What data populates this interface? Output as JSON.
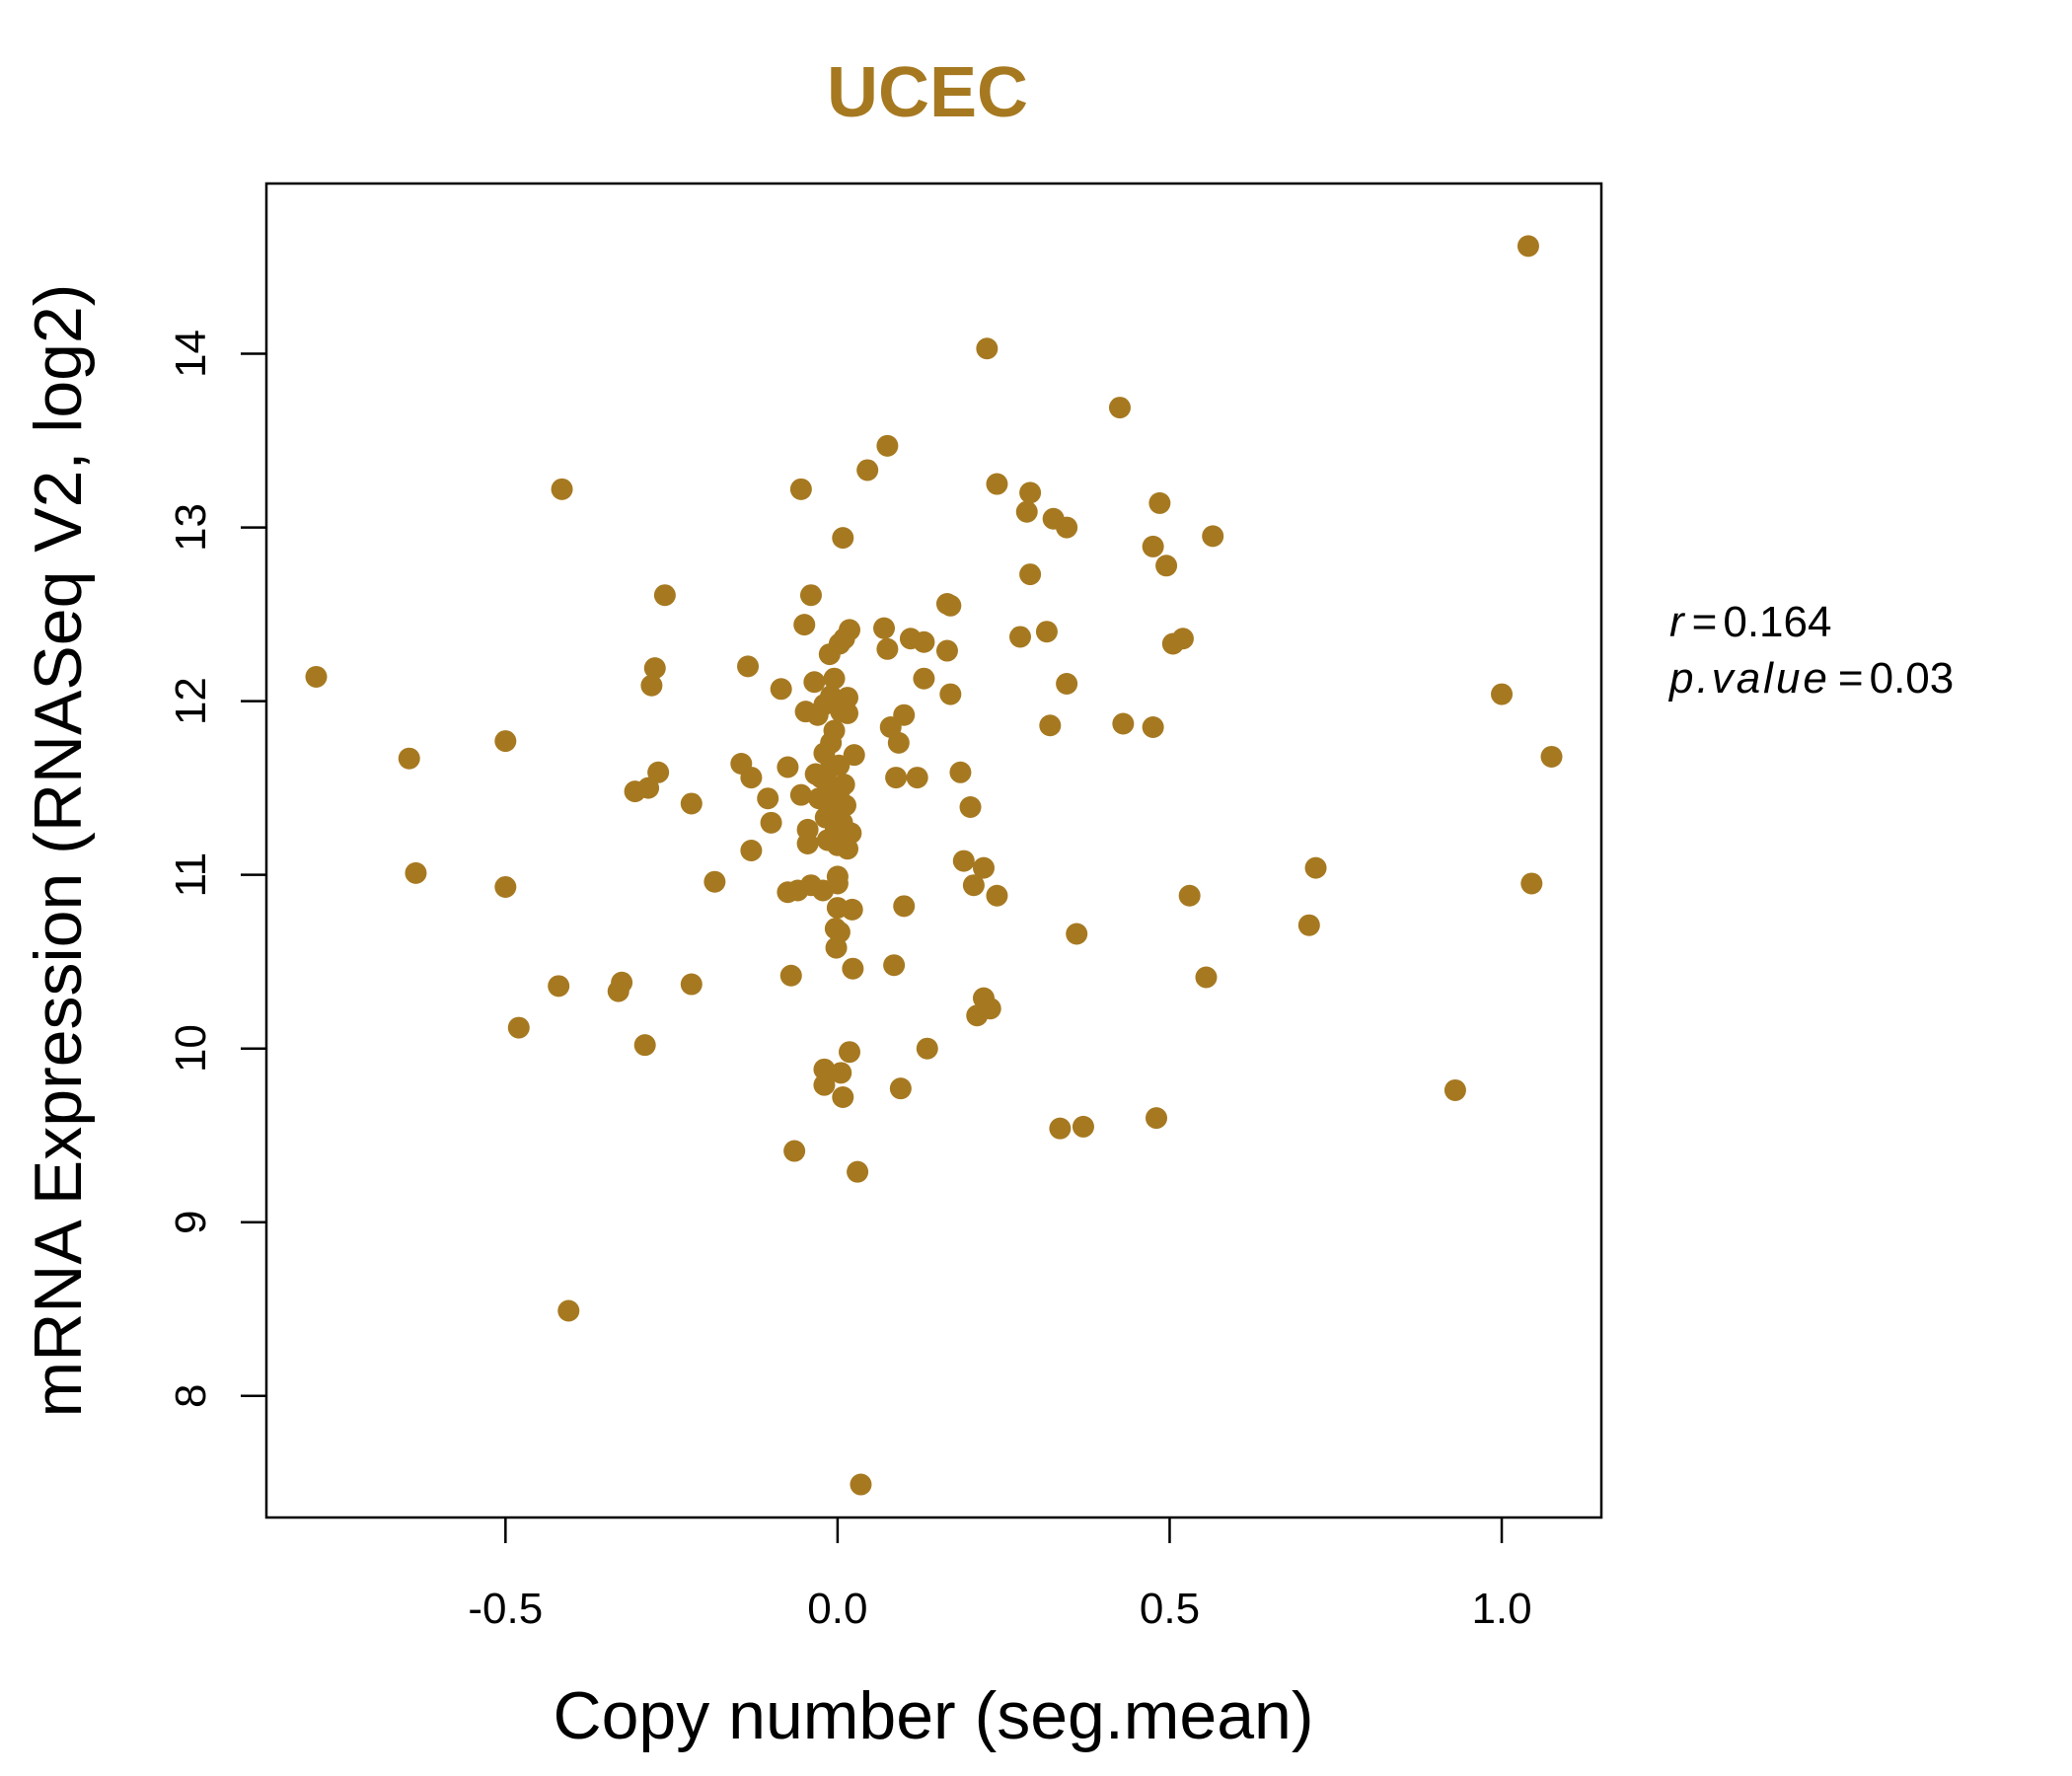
{
  "chart_data": {
    "type": "scatter",
    "title": "UCEC",
    "xlabel": "Copy number (seg.mean)",
    "ylabel": "mRNA Expression (RNASeq V2, log2)",
    "xlim": [
      -0.86,
      1.15
    ],
    "ylim": [
      7.3,
      14.98
    ],
    "xticks": [
      -0.5,
      0.0,
      0.5,
      1.0
    ],
    "xtick_labels": [
      "-0.5",
      "0.0",
      "0.5",
      "1.0"
    ],
    "yticks": [
      8,
      9,
      10,
      11,
      12,
      13,
      14
    ],
    "ytick_labels": [
      "8",
      "9",
      "10",
      "11",
      "12",
      "13",
      "14"
    ],
    "grid": false,
    "point_color": "#A67921",
    "stats": {
      "r_label": "r",
      "r_value": "0.164",
      "p_label": "p.value",
      "p_value": "0.03"
    },
    "points": [
      [
        -0.785,
        12.14
      ],
      [
        -0.645,
        11.67
      ],
      [
        -0.635,
        11.01
      ],
      [
        -0.5,
        11.77
      ],
      [
        -0.5,
        10.93
      ],
      [
        -0.48,
        10.12
      ],
      [
        -0.415,
        13.22
      ],
      [
        -0.42,
        10.36
      ],
      [
        -0.405,
        8.49
      ],
      [
        -0.33,
        10.33
      ],
      [
        -0.325,
        10.38
      ],
      [
        -0.305,
        11.48
      ],
      [
        -0.29,
        10.02
      ],
      [
        -0.285,
        11.5
      ],
      [
        -0.28,
        12.09
      ],
      [
        -0.275,
        12.19
      ],
      [
        -0.27,
        11.59
      ],
      [
        -0.26,
        12.61
      ],
      [
        -0.22,
        11.41
      ],
      [
        -0.22,
        10.37
      ],
      [
        -0.185,
        10.96
      ],
      [
        -0.145,
        11.64
      ],
      [
        -0.135,
        12.2
      ],
      [
        -0.13,
        11.56
      ],
      [
        -0.13,
        11.14
      ],
      [
        -0.105,
        11.44
      ],
      [
        -0.1,
        11.3
      ],
      [
        -0.085,
        12.07
      ],
      [
        -0.075,
        11.62
      ],
      [
        -0.075,
        10.9
      ],
      [
        -0.07,
        10.42
      ],
      [
        -0.065,
        9.41
      ],
      [
        -0.06,
        10.91
      ],
      [
        -0.055,
        13.22
      ],
      [
        -0.055,
        11.46
      ],
      [
        -0.05,
        12.44
      ],
      [
        -0.048,
        11.94
      ],
      [
        -0.045,
        11.18
      ],
      [
        -0.045,
        11.26
      ],
      [
        -0.04,
        12.61
      ],
      [
        -0.04,
        10.94
      ],
      [
        -0.035,
        12.11
      ],
      [
        -0.033,
        11.58
      ],
      [
        -0.03,
        11.92
      ],
      [
        -0.028,
        11.44
      ],
      [
        -0.025,
        11.56
      ],
      [
        -0.022,
        10.91
      ],
      [
        -0.02,
        11.98
      ],
      [
        -0.02,
        11.7
      ],
      [
        -0.02,
        9.88
      ],
      [
        -0.02,
        9.79
      ],
      [
        -0.018,
        11.33
      ],
      [
        -0.015,
        11.53
      ],
      [
        -0.015,
        11.2
      ],
      [
        -0.012,
        12.27
      ],
      [
        -0.01,
        12.03
      ],
      [
        -0.01,
        11.76
      ],
      [
        -0.01,
        11.62
      ],
      [
        -0.008,
        11.47
      ],
      [
        -0.005,
        12.13
      ],
      [
        -0.005,
        11.83
      ],
      [
        -0.005,
        11.4
      ],
      [
        -0.003,
        11.26
      ],
      [
        -0.003,
        10.69
      ],
      [
        -0.002,
        10.58
      ],
      [
        0.0,
        11.17
      ],
      [
        0.0,
        10.99
      ],
      [
        0.0,
        10.95
      ],
      [
        0.0,
        10.81
      ],
      [
        0.002,
        11.63
      ],
      [
        0.003,
        12.33
      ],
      [
        0.003,
        11.38
      ],
      [
        0.003,
        10.67
      ],
      [
        0.005,
        11.94
      ],
      [
        0.005,
        11.5
      ],
      [
        0.005,
        9.86
      ],
      [
        0.007,
        11.3
      ],
      [
        0.008,
        12.94
      ],
      [
        0.008,
        11.2
      ],
      [
        0.008,
        9.72
      ],
      [
        0.01,
        12.36
      ],
      [
        0.01,
        11.52
      ],
      [
        0.012,
        11.4
      ],
      [
        0.015,
        12.02
      ],
      [
        0.015,
        11.93
      ],
      [
        0.015,
        11.15
      ],
      [
        0.018,
        12.41
      ],
      [
        0.018,
        9.98
      ],
      [
        0.02,
        11.24
      ],
      [
        0.022,
        10.8
      ],
      [
        0.023,
        10.46
      ],
      [
        0.025,
        11.69
      ],
      [
        0.03,
        9.29
      ],
      [
        0.035,
        7.49
      ],
      [
        0.045,
        13.33
      ],
      [
        0.07,
        12.42
      ],
      [
        0.075,
        13.47
      ],
      [
        0.075,
        12.3
      ],
      [
        0.08,
        11.85
      ],
      [
        0.085,
        10.48
      ],
      [
        0.088,
        11.56
      ],
      [
        0.092,
        11.76
      ],
      [
        0.095,
        9.77
      ],
      [
        0.1,
        11.92
      ],
      [
        0.1,
        10.82
      ],
      [
        0.11,
        12.36
      ],
      [
        0.12,
        11.56
      ],
      [
        0.13,
        12.34
      ],
      [
        0.13,
        12.13
      ],
      [
        0.135,
        10.0
      ],
      [
        0.165,
        12.56
      ],
      [
        0.165,
        12.29
      ],
      [
        0.17,
        12.55
      ],
      [
        0.17,
        12.04
      ],
      [
        0.185,
        11.59
      ],
      [
        0.19,
        11.08
      ],
      [
        0.2,
        11.39
      ],
      [
        0.205,
        10.94
      ],
      [
        0.21,
        10.19
      ],
      [
        0.22,
        11.04
      ],
      [
        0.22,
        10.29
      ],
      [
        0.225,
        14.03
      ],
      [
        0.23,
        10.23
      ],
      [
        0.24,
        13.25
      ],
      [
        0.24,
        10.88
      ],
      [
        0.275,
        12.37
      ],
      [
        0.285,
        13.09
      ],
      [
        0.29,
        12.73
      ],
      [
        0.29,
        13.2
      ],
      [
        0.315,
        12.4
      ],
      [
        0.32,
        11.86
      ],
      [
        0.325,
        13.05
      ],
      [
        0.335,
        9.54
      ],
      [
        0.345,
        13.0
      ],
      [
        0.345,
        12.1
      ],
      [
        0.37,
        9.55
      ],
      [
        0.36,
        10.66
      ],
      [
        0.425,
        13.69
      ],
      [
        0.43,
        11.87
      ],
      [
        0.475,
        12.89
      ],
      [
        0.475,
        11.85
      ],
      [
        0.48,
        9.6
      ],
      [
        0.485,
        13.14
      ],
      [
        0.495,
        12.78
      ],
      [
        0.505,
        12.33
      ],
      [
        0.52,
        12.36
      ],
      [
        0.53,
        10.88
      ],
      [
        0.555,
        10.41
      ],
      [
        0.565,
        12.95
      ],
      [
        0.71,
        10.71
      ],
      [
        0.72,
        11.04
      ],
      [
        0.93,
        9.76
      ],
      [
        1.0,
        12.04
      ],
      [
        1.04,
        14.62
      ],
      [
        1.045,
        10.95
      ],
      [
        1.075,
        11.68
      ]
    ]
  }
}
